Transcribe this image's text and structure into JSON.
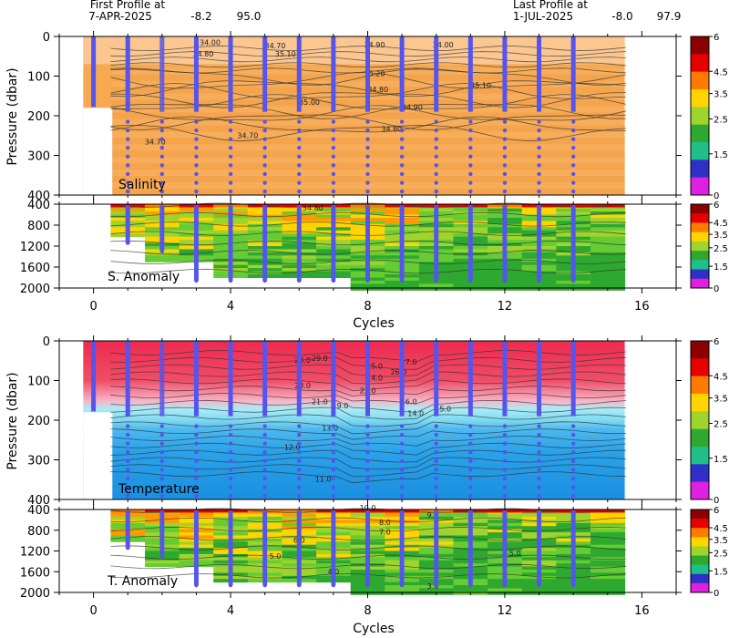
{
  "header": {
    "first_title": "First Profile at",
    "first_date": "7-APR-2025",
    "first_lon": "-8.2",
    "first_lat": "95.0",
    "last_title": "Last Profile at",
    "last_date": "1-JUL-2025",
    "last_lon": "-8.0",
    "last_lat": "97.9"
  },
  "chart_data": [
    {
      "type": "heatmap",
      "panel": "Salinity",
      "label": "Salinity",
      "ylabel": "Pressure (dbar)",
      "xlim": [
        -1,
        17
      ],
      "ylim": [
        400,
        0
      ],
      "xticks": [
        0,
        4,
        8,
        12,
        16
      ],
      "yticks": [
        0,
        100,
        200,
        300,
        400
      ],
      "colorbar_ticks": [
        "6",
        "4.5",
        "3.5",
        "2.5",
        "1.5",
        "0"
      ],
      "contour_labels": [
        {
          "text": "34.00",
          "x": 3.4,
          "y": 22
        },
        {
          "text": "34.70",
          "x": 5.3,
          "y": 30
        },
        {
          "text": "34.80",
          "x": 3.2,
          "y": 50
        },
        {
          "text": "35.10",
          "x": 5.6,
          "y": 50
        },
        {
          "text": "34.90",
          "x": 8.2,
          "y": 28
        },
        {
          "text": "34.00",
          "x": 10.2,
          "y": 28
        },
        {
          "text": "35.20",
          "x": 8.2,
          "y": 100
        },
        {
          "text": "34.80",
          "x": 8.3,
          "y": 140
        },
        {
          "text": "35.10",
          "x": 11.3,
          "y": 130
        },
        {
          "text": "35.00",
          "x": 6.3,
          "y": 172
        },
        {
          "text": "34.90",
          "x": 9.3,
          "y": 185
        },
        {
          "text": "34.80",
          "x": 8.7,
          "y": 240
        },
        {
          "text": "34.70",
          "x": 1.8,
          "y": 272
        },
        {
          "text": "34.70",
          "x": 4.5,
          "y": 256
        }
      ]
    },
    {
      "type": "heatmap",
      "panel": "Salinity anomaly",
      "label": "S. Anomaly",
      "ylim": [
        2000,
        400
      ],
      "yticks": [
        400,
        800,
        1200,
        1600,
        2000
      ],
      "colorbar_ticks": [
        "6",
        "4.5",
        "3.5",
        "2.5",
        "1.5",
        "0"
      ],
      "contour_labels": [
        {
          "text": "34.80",
          "x": 6.4,
          "y": 520
        }
      ]
    },
    {
      "type": "heatmap",
      "panel": "Temperature",
      "label": "Temperature",
      "ylabel": "Pressure (dbar)",
      "xlabel": "Cycles",
      "xlim": [
        -1,
        17
      ],
      "ylim": [
        400,
        0
      ],
      "xticks": [
        0,
        4,
        8,
        12,
        16
      ],
      "yticks": [
        0,
        100,
        200,
        300,
        400
      ],
      "colorbar_ticks": [
        "6",
        "4.5",
        "3.5",
        "2.5",
        "1.5",
        "0"
      ],
      "contour_labels": [
        {
          "text": "28.0",
          "x": 6.1,
          "y": 55
        },
        {
          "text": "29.0",
          "x": 6.6,
          "y": 50
        },
        {
          "text": "23.0",
          "x": 6.1,
          "y": 120
        },
        {
          "text": "27.0",
          "x": 9.2,
          "y": 60
        },
        {
          "text": "26.0",
          "x": 8.9,
          "y": 85
        },
        {
          "text": "25.0",
          "x": 8.2,
          "y": 70
        },
        {
          "text": "24.0",
          "x": 8.2,
          "y": 100
        },
        {
          "text": "22.0",
          "x": 8.0,
          "y": 132
        },
        {
          "text": "21.0",
          "x": 6.6,
          "y": 160
        },
        {
          "text": "19.0",
          "x": 7.2,
          "y": 170
        },
        {
          "text": "16.0",
          "x": 9.2,
          "y": 160
        },
        {
          "text": "14.0",
          "x": 9.4,
          "y": 190
        },
        {
          "text": "15.0",
          "x": 10.2,
          "y": 178
        },
        {
          "text": "13.0",
          "x": 6.9,
          "y": 226
        },
        {
          "text": "12.0",
          "x": 5.8,
          "y": 275
        },
        {
          "text": "11.0",
          "x": 6.7,
          "y": 355
        }
      ]
    },
    {
      "type": "heatmap",
      "panel": "Temperature anomaly",
      "label": "T. Anomaly",
      "xlabel": "Cycles",
      "ylim": [
        2000,
        400
      ],
      "yticks": [
        400,
        800,
        1200,
        1600,
        2000
      ],
      "colorbar_ticks": [
        "6",
        "4.5",
        "3.5",
        "2.5",
        "1.5",
        "0"
      ],
      "contour_labels": [
        {
          "text": "10.0",
          "x": 8.0,
          "y": 420
        },
        {
          "text": "9.0",
          "x": 9.9,
          "y": 560
        },
        {
          "text": "8.0",
          "x": 8.5,
          "y": 700
        },
        {
          "text": "7.0",
          "x": 8.5,
          "y": 880
        },
        {
          "text": "6.0",
          "x": 6.0,
          "y": 1040
        },
        {
          "text": "5.0",
          "x": 5.3,
          "y": 1350
        },
        {
          "text": "5.0",
          "x": 12.3,
          "y": 1300
        },
        {
          "text": "4.0",
          "x": 7.0,
          "y": 1650
        },
        {
          "text": "3.0",
          "x": 9.9,
          "y": 1930
        }
      ]
    }
  ],
  "cycles": {
    "x": [
      0,
      1,
      2,
      3,
      4,
      5,
      6,
      7,
      8,
      9,
      10,
      11,
      12,
      13,
      14
    ],
    "bar_cycles_upper": [
      0,
      1,
      3,
      4,
      5,
      6,
      7,
      8,
      9,
      10,
      11,
      12,
      13,
      14
    ],
    "dotted_cycles_upper": [
      2
    ],
    "bottom_depth_deep": [
      1860,
      1860,
      1860,
      1860,
      1860,
      1860,
      1860,
      1860,
      1860,
      1860,
      1860,
      1860,
      1860,
      1860
    ]
  },
  "colors": {
    "profile": "#5555ee",
    "salinity_fill": "#f6a950",
    "salinity_light": "#fbc690",
    "temp_top": "#ee3355",
    "temp_mid": "#99e6f5",
    "temp_deep": "#1e9be8"
  },
  "colorbar_colors": [
    "#8b0000",
    "#e60000",
    "#ff7a00",
    "#ffd400",
    "#9ed42c",
    "#2fa82f",
    "#1fbf8a",
    "#3030c8",
    "#e020e0"
  ],
  "axis": {
    "xlabel": "Cycles",
    "ylabel": "Pressure (dbar)"
  }
}
